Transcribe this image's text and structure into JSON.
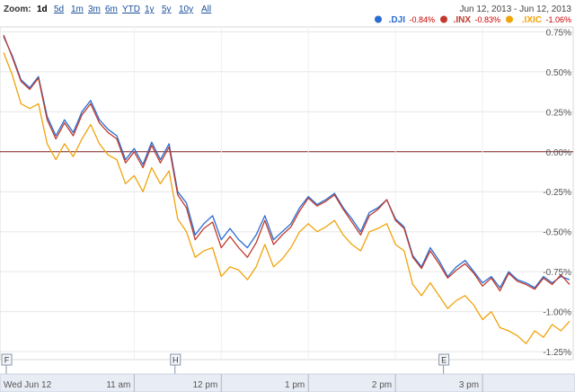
{
  "toolbar": {
    "zoom_label": "Zoom:",
    "zoom_options": [
      "1d",
      "5d",
      "1m",
      "3m",
      "6m",
      "YTD",
      "1y",
      "5y",
      "10y",
      "All"
    ],
    "active_zoom": "1d",
    "date_range": "Jun 12, 2013  -  Jun 12, 2013"
  },
  "legend": [
    {
      "name": ".DJI",
      "change": "-0.84%",
      "color": "#2a6dd2"
    },
    {
      "name": ".INX",
      "change": "-0.83%",
      "color": "#c0392b"
    },
    {
      "name": ".IXIC",
      "change": "-1.06%",
      "color": "#f0a30a"
    }
  ],
  "markers": [
    {
      "letter": "F",
      "color": "#cfd6e4"
    },
    {
      "letter": "H",
      "color": "#cfd6e4"
    },
    {
      "letter": "E",
      "color": "#cfd6e4"
    }
  ],
  "chart_data": {
    "type": "line",
    "title": "",
    "xlabel": "",
    "ylabel": "",
    "x_ticks": [
      "Wed Jun 12",
      "11 am",
      "12 pm",
      "1 pm",
      "2 pm",
      "3 pm"
    ],
    "y_ticks": [
      "0.75%",
      "0.50%",
      "0.25%",
      "0.00%",
      "-0.25%",
      "-0.50%",
      "-0.75%",
      "-1.00%",
      "-1.25%"
    ],
    "ylim": [
      -1.3,
      0.78
    ],
    "xlim_minutes_after_open": [
      0,
      390
    ],
    "zero_line": true,
    "grid": true,
    "series": [
      {
        "name": ".DJI",
        "color": "#2a6dd2",
        "x": [
          0,
          6,
          12,
          18,
          24,
          30,
          36,
          42,
          48,
          54,
          60,
          66,
          72,
          78,
          84,
          90,
          96,
          102,
          108,
          114,
          120,
          126,
          132,
          138,
          144,
          150,
          156,
          162,
          168,
          174,
          180,
          186,
          192,
          198,
          204,
          210,
          216,
          222,
          228,
          234,
          240,
          246,
          252,
          258,
          264,
          270,
          276,
          282,
          288,
          294,
          300,
          306,
          312,
          318,
          324,
          330,
          336,
          342,
          348,
          354,
          360,
          366,
          372,
          378,
          384,
          390
        ],
        "y": [
          0.72,
          0.6,
          0.45,
          0.4,
          0.47,
          0.22,
          0.1,
          0.2,
          0.12,
          0.25,
          0.32,
          0.2,
          0.14,
          0.1,
          -0.05,
          0.02,
          -0.08,
          0.06,
          -0.05,
          0.05,
          -0.25,
          -0.32,
          -0.52,
          -0.45,
          -0.4,
          -0.55,
          -0.48,
          -0.55,
          -0.6,
          -0.52,
          -0.4,
          -0.55,
          -0.5,
          -0.45,
          -0.35,
          -0.28,
          -0.33,
          -0.3,
          -0.26,
          -0.35,
          -0.42,
          -0.5,
          -0.38,
          -0.35,
          -0.3,
          -0.42,
          -0.47,
          -0.65,
          -0.72,
          -0.6,
          -0.68,
          -0.78,
          -0.72,
          -0.68,
          -0.75,
          -0.82,
          -0.78,
          -0.85,
          -0.75,
          -0.8,
          -0.82,
          -0.85,
          -0.78,
          -0.82,
          -0.78,
          -0.8
        ]
      },
      {
        "name": ".INX",
        "color": "#c0392b",
        "x": [
          0,
          6,
          12,
          18,
          24,
          30,
          36,
          42,
          48,
          54,
          60,
          66,
          72,
          78,
          84,
          90,
          96,
          102,
          108,
          114,
          120,
          126,
          132,
          138,
          144,
          150,
          156,
          162,
          168,
          174,
          180,
          186,
          192,
          198,
          204,
          210,
          216,
          222,
          228,
          234,
          240,
          246,
          252,
          258,
          264,
          270,
          276,
          282,
          288,
          294,
          300,
          306,
          312,
          318,
          324,
          330,
          336,
          342,
          348,
          354,
          360,
          366,
          372,
          378,
          384,
          390
        ],
        "y": [
          0.73,
          0.59,
          0.44,
          0.39,
          0.46,
          0.2,
          0.08,
          0.18,
          0.1,
          0.23,
          0.3,
          0.18,
          0.12,
          0.08,
          -0.07,
          0.0,
          -0.1,
          0.04,
          -0.07,
          0.03,
          -0.27,
          -0.35,
          -0.55,
          -0.48,
          -0.44,
          -0.6,
          -0.53,
          -0.6,
          -0.66,
          -0.57,
          -0.43,
          -0.58,
          -0.52,
          -0.47,
          -0.37,
          -0.29,
          -0.34,
          -0.31,
          -0.27,
          -0.36,
          -0.44,
          -0.52,
          -0.4,
          -0.36,
          -0.3,
          -0.43,
          -0.48,
          -0.66,
          -0.73,
          -0.62,
          -0.7,
          -0.79,
          -0.74,
          -0.7,
          -0.76,
          -0.84,
          -0.79,
          -0.87,
          -0.76,
          -0.81,
          -0.83,
          -0.86,
          -0.79,
          -0.83,
          -0.77,
          -0.83
        ]
      },
      {
        "name": ".IXIC",
        "color": "#f0a30a",
        "x": [
          0,
          6,
          12,
          18,
          24,
          30,
          36,
          42,
          48,
          54,
          60,
          66,
          72,
          78,
          84,
          90,
          96,
          102,
          108,
          114,
          120,
          126,
          132,
          138,
          144,
          150,
          156,
          162,
          168,
          174,
          180,
          186,
          192,
          198,
          204,
          210,
          216,
          222,
          228,
          234,
          240,
          246,
          252,
          258,
          264,
          270,
          276,
          282,
          288,
          294,
          300,
          306,
          312,
          318,
          324,
          330,
          336,
          342,
          348,
          354,
          360,
          366,
          372,
          378,
          384,
          390
        ],
        "y": [
          0.62,
          0.48,
          0.3,
          0.27,
          0.3,
          0.05,
          -0.05,
          0.05,
          -0.03,
          0.08,
          0.17,
          0.05,
          -0.02,
          -0.05,
          -0.2,
          -0.15,
          -0.25,
          -0.1,
          -0.2,
          -0.12,
          -0.42,
          -0.5,
          -0.66,
          -0.62,
          -0.6,
          -0.78,
          -0.72,
          -0.74,
          -0.8,
          -0.72,
          -0.58,
          -0.72,
          -0.67,
          -0.6,
          -0.5,
          -0.45,
          -0.5,
          -0.47,
          -0.43,
          -0.52,
          -0.58,
          -0.62,
          -0.5,
          -0.48,
          -0.45,
          -0.58,
          -0.62,
          -0.83,
          -0.9,
          -0.82,
          -0.9,
          -0.98,
          -0.93,
          -0.9,
          -0.96,
          -1.05,
          -1.0,
          -1.1,
          -1.12,
          -1.15,
          -1.2,
          -1.12,
          -1.16,
          -1.08,
          -1.12,
          -1.06
        ]
      }
    ]
  }
}
